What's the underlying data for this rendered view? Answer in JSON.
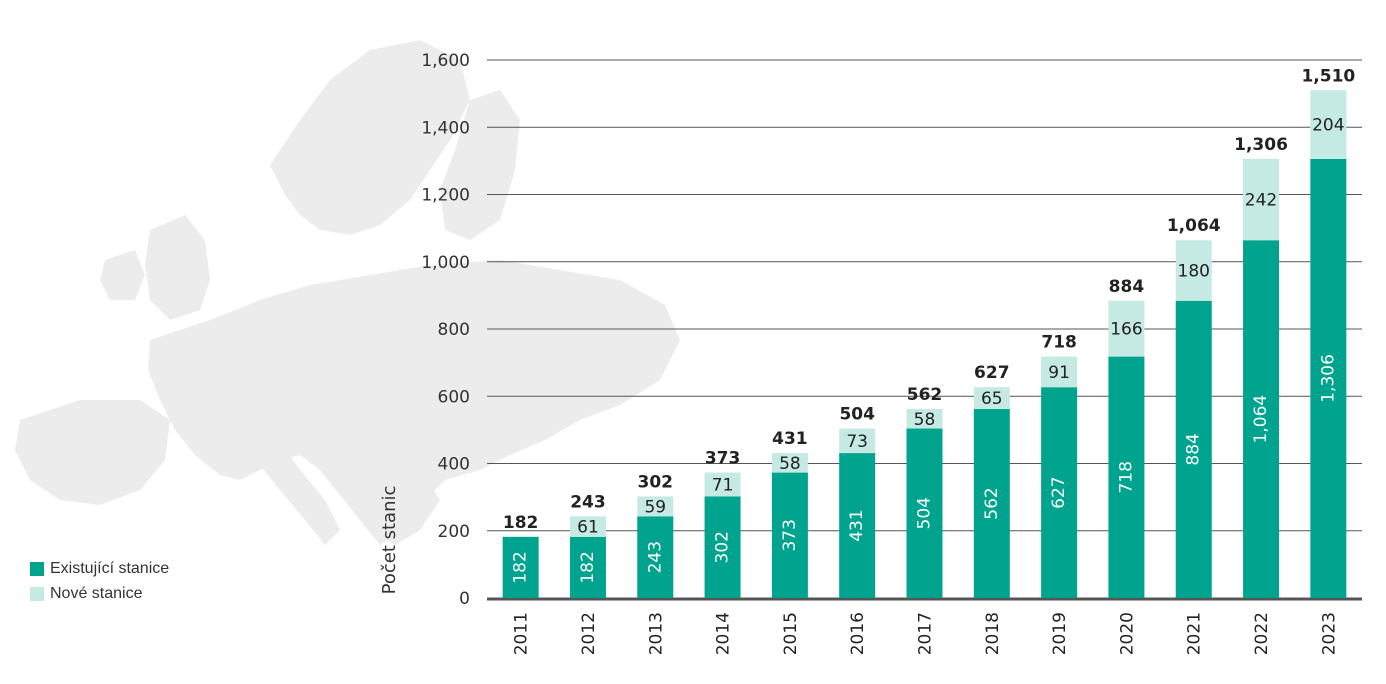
{
  "colors": {
    "existing": "#00a48e",
    "new": "#c4eae3",
    "map": "#ececec",
    "grid": "#555555",
    "baseline": "#555555"
  },
  "legend": {
    "existing_label": "Existující stanice",
    "new_label": "Nové stanice"
  },
  "chart_data": {
    "type": "bar",
    "stacked": true,
    "categories": [
      "2011",
      "2012",
      "2013",
      "2014",
      "2015",
      "2016",
      "2017",
      "2018",
      "2019",
      "2020",
      "2021",
      "2022",
      "2023"
    ],
    "series": [
      {
        "name": "Existující stanice",
        "values": [
          182,
          182,
          243,
          302,
          373,
          431,
          504,
          562,
          627,
          718,
          884,
          1064,
          1306
        ]
      },
      {
        "name": "Nové stanice",
        "values": [
          0,
          61,
          59,
          71,
          58,
          73,
          58,
          65,
          91,
          166,
          180,
          242,
          204
        ]
      }
    ],
    "totals": [
      182,
      243,
      302,
      373,
      431,
      504,
      562,
      627,
      718,
      884,
      1064,
      1306,
      1510
    ],
    "segment_labels_existing": [
      "182",
      "182",
      "243",
      "302",
      "373",
      "431",
      "504",
      "562",
      "627",
      "718",
      "884",
      "1,064",
      "1,306"
    ],
    "segment_labels_new": [
      "",
      "61",
      "59",
      "71",
      "58",
      "73",
      "58",
      "65",
      "91",
      "166",
      "180",
      "242",
      "204"
    ],
    "total_labels": [
      "182",
      "243",
      "302",
      "373",
      "431",
      "504",
      "562",
      "627",
      "718",
      "884",
      "1,064",
      "1,306",
      "1,510"
    ],
    "xlabel": "",
    "ylabel": "Počet stanic",
    "ylim": [
      0,
      1600
    ],
    "yticks": [
      0,
      200,
      400,
      600,
      800,
      1000,
      1200,
      1400,
      1600
    ],
    "ytick_labels": [
      "0",
      "200",
      "400",
      "600",
      "800",
      "1,000",
      "1,200",
      "1,400",
      "1,600"
    ],
    "grid": true,
    "legend_position": "bottom-left"
  }
}
